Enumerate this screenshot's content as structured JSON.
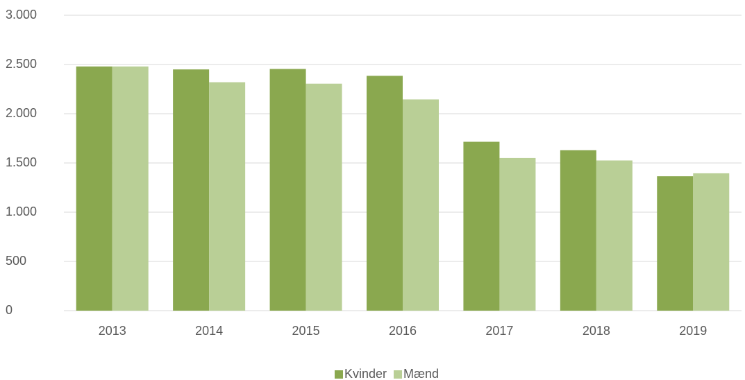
{
  "chart_data": {
    "type": "bar",
    "categories": [
      "2013",
      "2014",
      "2015",
      "2016",
      "2017",
      "2018",
      "2019"
    ],
    "series": [
      {
        "name": "Kvinder",
        "color": "#8aa84f",
        "values": [
          2480,
          2450,
          2455,
          2385,
          1715,
          1630,
          1365
        ]
      },
      {
        "name": "Mænd",
        "color": "#b9cf96",
        "values": [
          2480,
          2320,
          2305,
          2145,
          1550,
          1525,
          1395
        ]
      }
    ],
    "ylim": [
      0,
      3000
    ],
    "yticks": [
      0,
      500,
      {
        "value": 1000,
        "label": "1.000"
      },
      {
        "value": 1500,
        "label": "1.500"
      },
      {
        "value": 2000,
        "label": "2.000"
      },
      {
        "value": 2500,
        "label": "2.500"
      },
      {
        "value": 3000,
        "label": "3.000"
      }
    ],
    "grid": true,
    "legend": "bottom"
  }
}
